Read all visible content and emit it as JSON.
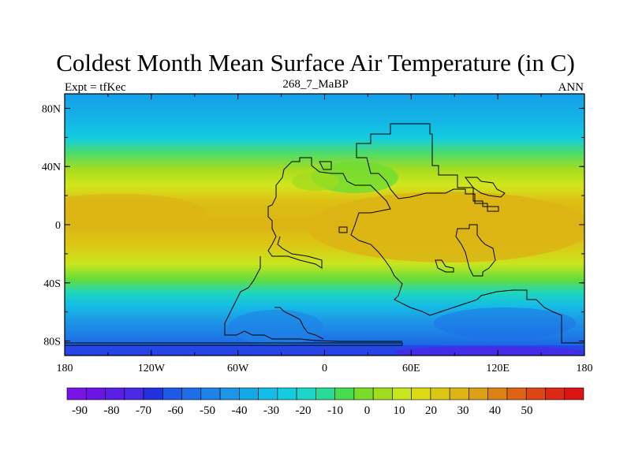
{
  "title": "Coldest Month Mean Surface Air Temperature (in C)",
  "subtitle_left": "Expt = tfKec",
  "subtitle_center": "268_7_MaBP",
  "subtitle_right": "ANN",
  "map": {
    "lat_ticks": [
      "80N",
      "40N",
      "0",
      "40S",
      "80S"
    ],
    "lat_values": [
      80,
      40,
      0,
      -40,
      -80
    ],
    "lon_ticks": [
      "180",
      "120W",
      "60W",
      "0",
      "60E",
      "120E",
      "180"
    ],
    "lon_values": [
      -180,
      -120,
      -60,
      0,
      60,
      120,
      180
    ],
    "lat_range": [
      -90,
      90
    ],
    "lon_range": [
      -180,
      180
    ]
  },
  "colorbar": {
    "labels": [
      "-90",
      "-80",
      "-70",
      "-60",
      "-50",
      "-40",
      "-30",
      "-20",
      "-10",
      "0",
      "10",
      "20",
      "30",
      "40",
      "50"
    ],
    "colors": [
      "#7a14e6",
      "#6a14e6",
      "#5a1ee6",
      "#4a28e6",
      "#2230e0",
      "#1e5ae6",
      "#1e6ee6",
      "#1e82e6",
      "#1e96e6",
      "#14a8e6",
      "#14bce6",
      "#14cce0",
      "#1ed6c8",
      "#28dc96",
      "#46dc50",
      "#78dc28",
      "#a0dc1e",
      "#c8e61e",
      "#dcdc14",
      "#dcc814",
      "#dcb414",
      "#dca014",
      "#dc8214",
      "#dc6414",
      "#dc4614",
      "#dc2814",
      "#dc1414"
    ]
  },
  "colors": {
    "ocean_cold": "#1e96e6",
    "tropics": "#dcb414",
    "land_outline": "#000000"
  }
}
